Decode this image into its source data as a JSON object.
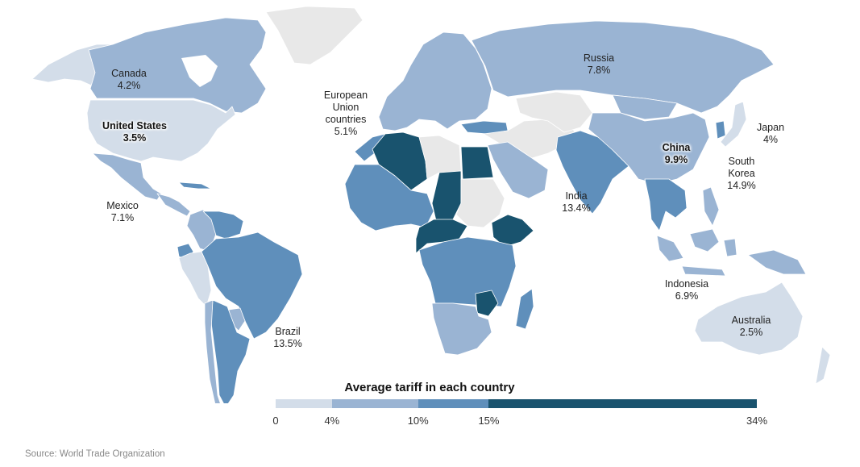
{
  "title": "Average tariff in each country",
  "source": "Source: World Trade Organization",
  "colors": {
    "bin_0_4": "#d3dde9",
    "bin_4_10": "#9ab4d3",
    "bin_10_15": "#5f8fbb",
    "bin_15_34": "#19536e",
    "no_data": "#e8e8e8"
  },
  "legend": {
    "title": "Average tariff in each country",
    "bins": [
      {
        "from": 0,
        "to": 4,
        "color": "#d3dde9"
      },
      {
        "from": 4,
        "to": 10,
        "color": "#9ab4d3"
      },
      {
        "from": 10,
        "to": 15,
        "color": "#5f8fbb"
      },
      {
        "from": 15,
        "to": 34,
        "color": "#19536e"
      }
    ],
    "ticks": [
      {
        "value": 0,
        "label": "0"
      },
      {
        "value": 4,
        "label": "4%"
      },
      {
        "value": 10,
        "label": "10%"
      },
      {
        "value": 15,
        "label": "15%"
      },
      {
        "value": 34,
        "label": "34%"
      }
    ]
  },
  "labels": [
    {
      "id": "canada",
      "name": "Canada",
      "value": "4.2%",
      "bold": false
    },
    {
      "id": "united-states",
      "name": "United States",
      "value": "3.5%",
      "bold": true
    },
    {
      "id": "mexico",
      "name": "Mexico",
      "value": "7.1%",
      "bold": false
    },
    {
      "id": "brazil",
      "name": "Brazil",
      "value": "13.5%",
      "bold": false
    },
    {
      "id": "eu",
      "name": "European Union countries",
      "name_lines": [
        "European",
        "Union",
        "countries"
      ],
      "value": "5.1%",
      "bold": false
    },
    {
      "id": "russia",
      "name": "Russia",
      "value": "7.8%",
      "bold": false
    },
    {
      "id": "china",
      "name": "China",
      "value": "9.9%",
      "bold": true
    },
    {
      "id": "japan",
      "name": "Japan",
      "value": "4%",
      "bold": false
    },
    {
      "id": "south-korea",
      "name": "South Korea",
      "name_lines": [
        "South",
        "Korea"
      ],
      "value": "14.9%",
      "bold": false
    },
    {
      "id": "india",
      "name": "India",
      "value": "13.4%",
      "bold": false
    },
    {
      "id": "indonesia",
      "name": "Indonesia",
      "value": "6.9%",
      "bold": false
    },
    {
      "id": "australia",
      "name": "Australia",
      "value": "2.5%",
      "bold": false
    }
  ],
  "regions": [
    {
      "id": "alaska",
      "bin": "bin_0_4"
    },
    {
      "id": "canada",
      "bin": "bin_4_10"
    },
    {
      "id": "greenland",
      "bin": "no_data"
    },
    {
      "id": "united-states",
      "bin": "bin_0_4"
    },
    {
      "id": "mexico",
      "bin": "bin_4_10"
    },
    {
      "id": "central-america",
      "bin": "bin_4_10"
    },
    {
      "id": "cuba",
      "bin": "bin_10_15"
    },
    {
      "id": "colombia",
      "bin": "bin_4_10"
    },
    {
      "id": "venezuela",
      "bin": "bin_10_15"
    },
    {
      "id": "brazil",
      "bin": "bin_10_15"
    },
    {
      "id": "peru",
      "bin": "bin_0_4"
    },
    {
      "id": "ecuador",
      "bin": "bin_10_15"
    },
    {
      "id": "chile",
      "bin": "bin_4_10"
    },
    {
      "id": "argentina",
      "bin": "bin_10_15"
    },
    {
      "id": "paraguay",
      "bin": "bin_4_10"
    },
    {
      "id": "europe",
      "bin": "bin_4_10"
    },
    {
      "id": "russia",
      "bin": "bin_4_10"
    },
    {
      "id": "turkey",
      "bin": "bin_10_15"
    },
    {
      "id": "middle-east",
      "bin": "no_data"
    },
    {
      "id": "saudi-arabia",
      "bin": "bin_4_10"
    },
    {
      "id": "north-africa-west",
      "bin": "bin_10_15"
    },
    {
      "id": "algeria",
      "bin": "bin_15_34"
    },
    {
      "id": "libya",
      "bin": "no_data"
    },
    {
      "id": "egypt",
      "bin": "bin_15_34"
    },
    {
      "id": "sudan",
      "bin": "no_data"
    },
    {
      "id": "chad",
      "bin": "bin_15_34"
    },
    {
      "id": "ethiopia",
      "bin": "bin_15_34"
    },
    {
      "id": "west-africa",
      "bin": "bin_10_15"
    },
    {
      "id": "central-africa",
      "bin": "bin_15_34"
    },
    {
      "id": "east-central-africa",
      "bin": "bin_10_15"
    },
    {
      "id": "zimbabwe",
      "bin": "bin_15_34"
    },
    {
      "id": "southern-africa",
      "bin": "bin_4_10"
    },
    {
      "id": "madagascar",
      "bin": "bin_10_15"
    },
    {
      "id": "central-asia",
      "bin": "no_data"
    },
    {
      "id": "india",
      "bin": "bin_10_15"
    },
    {
      "id": "china",
      "bin": "bin_4_10"
    },
    {
      "id": "mongolia",
      "bin": "bin_4_10"
    },
    {
      "id": "south-korea",
      "bin": "bin_10_15"
    },
    {
      "id": "japan",
      "bin": "bin_0_4"
    },
    {
      "id": "southeast-asia",
      "bin": "bin_10_15"
    },
    {
      "id": "indonesia",
      "bin": "bin_4_10"
    },
    {
      "id": "philippines",
      "bin": "bin_4_10"
    },
    {
      "id": "papua",
      "bin": "bin_4_10"
    },
    {
      "id": "australia",
      "bin": "bin_0_4"
    },
    {
      "id": "new-zealand",
      "bin": "bin_0_4"
    }
  ]
}
